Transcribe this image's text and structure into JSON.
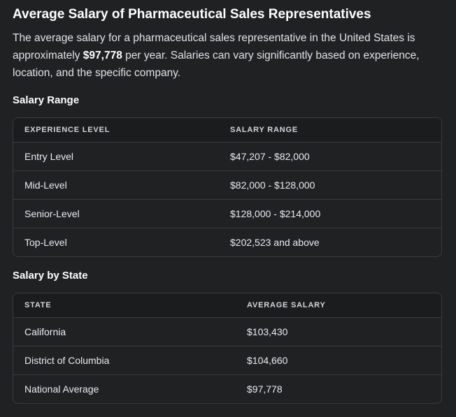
{
  "title": "Average Salary of Pharmaceutical Sales Representatives",
  "intro": {
    "before": "The average salary for a pharmaceutical sales representative in the United States is approximately ",
    "highlight": "$97,778",
    "after": " per year. Salaries can vary significantly based on experience, location, and the specific company."
  },
  "salary_range": {
    "heading": "Salary Range",
    "headers": [
      "EXPERIENCE LEVEL",
      "SALARY RANGE"
    ],
    "rows": [
      [
        "Entry Level",
        "$47,207 - $82,000"
      ],
      [
        "Mid-Level",
        "$82,000 - $128,000"
      ],
      [
        "Senior-Level",
        "$128,000 - $214,000"
      ],
      [
        "Top-Level",
        "$202,523 and above"
      ]
    ]
  },
  "salary_by_state": {
    "heading": "Salary by State",
    "headers": [
      "STATE",
      "AVERAGE SALARY"
    ],
    "rows": [
      [
        "California",
        "$103,430"
      ],
      [
        "District of Columbia",
        "$104,660"
      ],
      [
        "National Average",
        "$97,778"
      ]
    ]
  }
}
